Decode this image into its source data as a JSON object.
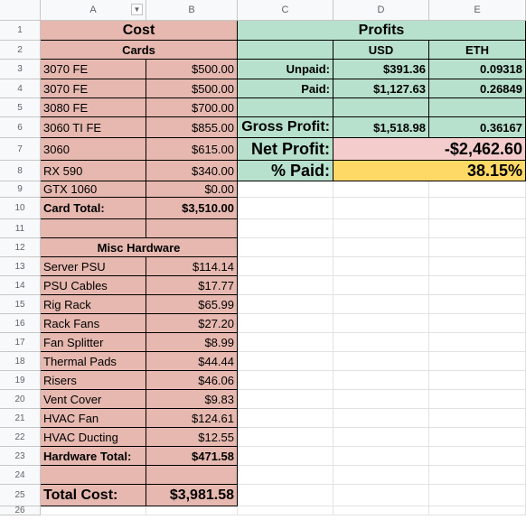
{
  "columns": [
    "A",
    "B",
    "C",
    "D",
    "E"
  ],
  "rows": [
    "1",
    "2",
    "3",
    "4",
    "5",
    "6",
    "7",
    "8",
    "9",
    "10",
    "11",
    "12",
    "13",
    "14",
    "15",
    "16",
    "17",
    "18",
    "19",
    "20",
    "21",
    "22",
    "23",
    "24",
    "25",
    "26"
  ],
  "cost": {
    "header": "Cost",
    "cards_header": "Cards",
    "cards": [
      {
        "name": "3070 FE",
        "value": "$500.00"
      },
      {
        "name": "3070 FE",
        "value": "$500.00"
      },
      {
        "name": "3080 FE",
        "value": "$700.00"
      },
      {
        "name": "3060 TI FE",
        "value": "$855.00"
      },
      {
        "name": "3060",
        "value": "$615.00"
      },
      {
        "name": "RX 590",
        "value": "$340.00"
      },
      {
        "name": "GTX 1060",
        "value": "$0.00"
      }
    ],
    "card_total_label": "Card Total:",
    "card_total_value": "$3,510.00",
    "misc_header": "Misc Hardware",
    "misc": [
      {
        "name": "Server PSU",
        "value": "$114.14"
      },
      {
        "name": "PSU Cables",
        "value": "$17.77"
      },
      {
        "name": "Rig Rack",
        "value": "$65.99"
      },
      {
        "name": "Rack Fans",
        "value": "$27.20"
      },
      {
        "name": "Fan Splitter",
        "value": "$8.99"
      },
      {
        "name": "Thermal Pads",
        "value": "$44.44"
      },
      {
        "name": "Risers",
        "value": "$46.06"
      },
      {
        "name": "Vent Cover",
        "value": "$9.83"
      },
      {
        "name": "HVAC Fan",
        "value": "$124.61"
      },
      {
        "name": "HVAC Ducting",
        "value": "$12.55"
      }
    ],
    "hardware_total_label": "Hardware Total:",
    "hardware_total_value": "$471.58",
    "total_cost_label": "Total Cost:",
    "total_cost_value": "$3,981.58"
  },
  "profits": {
    "header": "Profits",
    "usd_header": "USD",
    "eth_header": "ETH",
    "unpaid_label": "Unpaid:",
    "unpaid_usd": "$391.36",
    "unpaid_eth": "0.09318",
    "paid_label": "Paid:",
    "paid_usd": "$1,127.63",
    "paid_eth": "0.26849",
    "gross_label": "Gross Profit:",
    "gross_usd": "$1,518.98",
    "gross_eth": "0.36167",
    "net_label": "Net Profit:",
    "net_value": "-$2,462.60",
    "pct_label": "% Paid:",
    "pct_value": "38.15%"
  },
  "colors": {
    "cost_fill": "#e6b8af",
    "profit_fill": "#b7e1cd",
    "net_fill": "#f4cccc",
    "pct_fill": "#ffd966"
  }
}
